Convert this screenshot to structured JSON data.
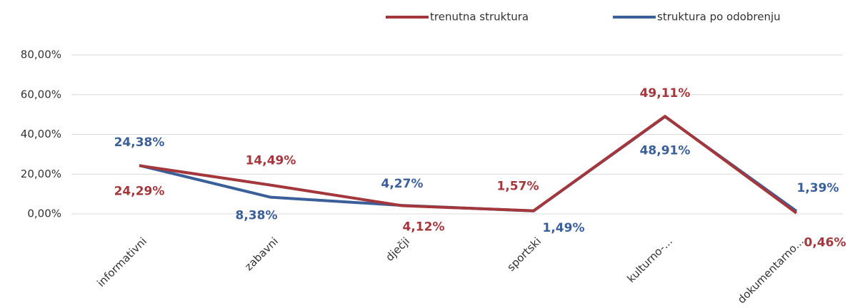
{
  "chart_data": {
    "type": "line",
    "categories": [
      "informativni",
      "zabavni",
      "dječji",
      "sportski",
      "kulturno-...",
      "dokumentarno..."
    ],
    "series": [
      {
        "name": "trenutna struktura",
        "color": "#a3373b",
        "values": [
          24.29,
          14.49,
          4.12,
          1.57,
          49.11,
          0.46
        ],
        "value_labels": [
          "24,29%",
          "14,49%",
          "4,12%",
          "1,57%",
          "49,11%",
          "0,46%"
        ]
      },
      {
        "name": "struktura po odobrenju",
        "color": "#3a5f99",
        "values": [
          24.38,
          8.38,
          4.27,
          1.49,
          48.91,
          1.39
        ],
        "value_labels": [
          "24,38%",
          "8,38%",
          "4,27%",
          "1,49%",
          "48,91%",
          "1,39%"
        ]
      }
    ],
    "ylim": [
      0,
      80
    ],
    "yticks": [
      {
        "value": 0,
        "label": "0,00%"
      },
      {
        "value": 20,
        "label": "20,00%"
      },
      {
        "value": 40,
        "label": "40,00%"
      },
      {
        "value": 60,
        "label": "60,00%"
      },
      {
        "value": 80,
        "label": "80,00%"
      }
    ],
    "grid": true,
    "legend": "top"
  }
}
